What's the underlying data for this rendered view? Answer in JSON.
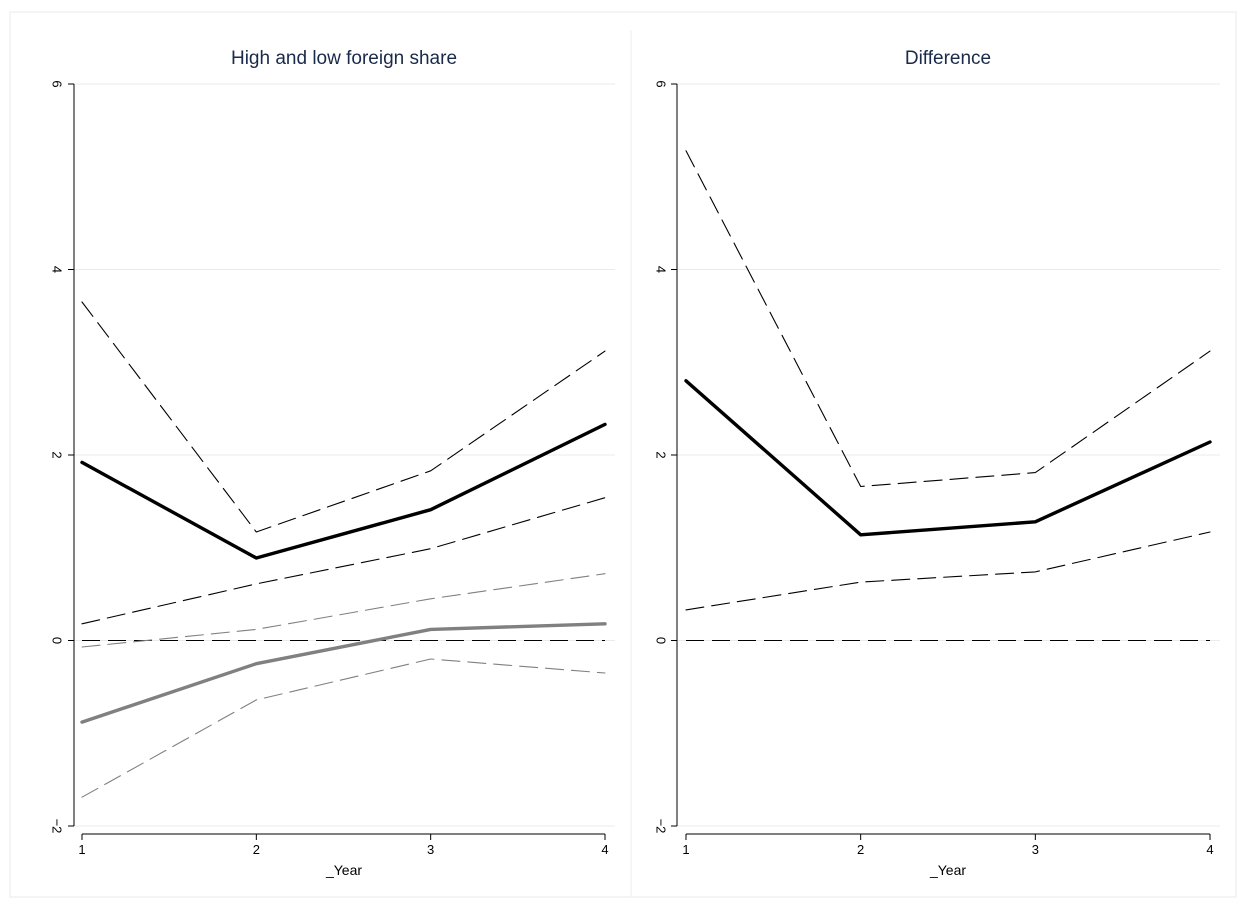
{
  "chart_data": [
    {
      "type": "line",
      "title": "High and low foreign share",
      "xlabel": "_Year",
      "ylabel": "",
      "x": [
        1,
        2,
        3,
        4
      ],
      "xlim": [
        1,
        4
      ],
      "ylim": [
        -2,
        6
      ],
      "xticks": [
        "1",
        "2",
        "3",
        "4"
      ],
      "yticks": [
        "−2",
        "0",
        "2",
        "4",
        "6"
      ],
      "ytick_values": [
        -2,
        0,
        2,
        4,
        6
      ],
      "grid": true,
      "legend": "none",
      "reference_line": {
        "y": 0,
        "style": "dashed",
        "color": "#000000"
      },
      "series": [
        {
          "values": [
            1.92,
            0.89,
            1.41,
            2.33
          ],
          "color": "#000000",
          "style": "solid",
          "weight": "thick"
        },
        {
          "values": [
            3.65,
            1.17,
            1.83,
            3.12
          ],
          "color": "#000000",
          "style": "dashed",
          "weight": "thin"
        },
        {
          "values": [
            0.18,
            0.61,
            0.99,
            1.54
          ],
          "color": "#000000",
          "style": "dashed",
          "weight": "thin"
        },
        {
          "values": [
            -0.88,
            -0.25,
            0.12,
            0.18
          ],
          "color": "#808080",
          "style": "solid",
          "weight": "thick"
        },
        {
          "values": [
            -0.07,
            0.12,
            0.45,
            0.72
          ],
          "color": "#808080",
          "style": "dashed",
          "weight": "thin"
        },
        {
          "values": [
            -1.69,
            -0.64,
            -0.2,
            -0.35
          ],
          "color": "#808080",
          "style": "dashed",
          "weight": "thin"
        }
      ]
    },
    {
      "type": "line",
      "title": "Difference",
      "xlabel": "_Year",
      "ylabel": "",
      "x": [
        1,
        2,
        3,
        4
      ],
      "xlim": [
        1,
        4
      ],
      "ylim": [
        -2,
        6
      ],
      "xticks": [
        "1",
        "2",
        "3",
        "4"
      ],
      "yticks": [
        "−2",
        "0",
        "2",
        "4",
        "6"
      ],
      "ytick_values": [
        -2,
        0,
        2,
        4,
        6
      ],
      "grid": true,
      "legend": "none",
      "reference_line": {
        "y": 0,
        "style": "dashed",
        "color": "#000000"
      },
      "series": [
        {
          "values": [
            2.8,
            1.14,
            1.28,
            2.14
          ],
          "color": "#000000",
          "style": "solid",
          "weight": "thick"
        },
        {
          "values": [
            5.28,
            1.66,
            1.81,
            3.12
          ],
          "color": "#000000",
          "style": "dashed",
          "weight": "thin"
        },
        {
          "values": [
            0.33,
            0.63,
            0.74,
            1.17
          ],
          "color": "#000000",
          "style": "dashed",
          "weight": "thin"
        }
      ]
    }
  ]
}
